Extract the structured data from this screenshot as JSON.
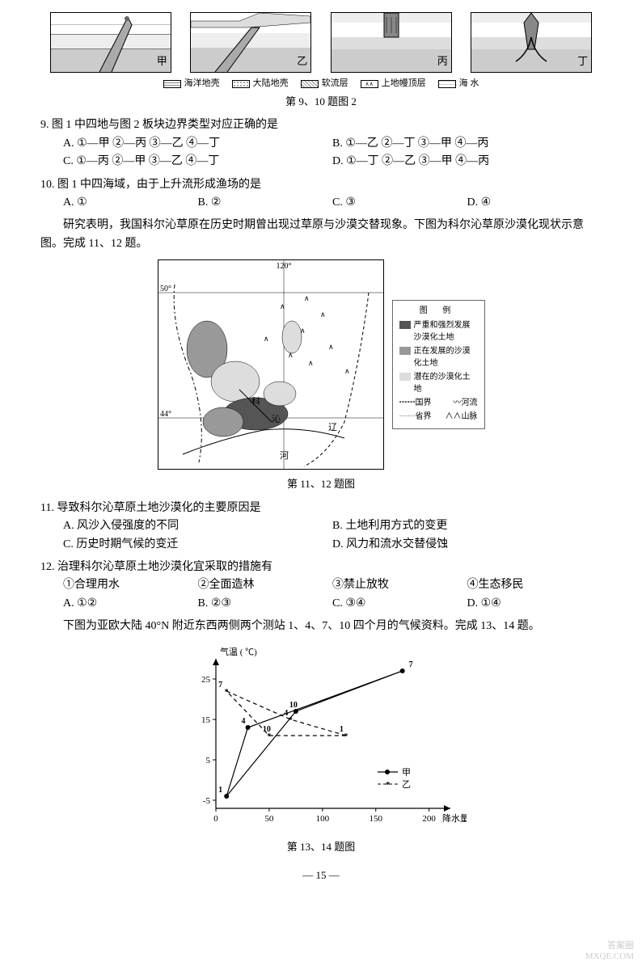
{
  "plate_diagrams": {
    "labels": [
      "甲",
      "乙",
      "丙",
      "丁"
    ],
    "legend": [
      {
        "label": "海洋地壳",
        "pattern": "horiz"
      },
      {
        "label": "大陆地壳",
        "pattern": "dots"
      },
      {
        "label": "软流层",
        "pattern": "grid"
      },
      {
        "label": "上地幔顶层",
        "pattern": "arrows"
      },
      {
        "label": "海 水",
        "pattern": "wave"
      }
    ],
    "caption": "第 9、10 题图 2"
  },
  "q9": {
    "stem": "9. 图 1 中四地与图 2 板块边界类型对应正确的是",
    "options": [
      "A. ①—甲 ②—丙 ③—乙 ④—丁",
      "B. ①—乙 ②—丁 ③—甲 ④—丙",
      "C. ①—丙 ②—甲 ③—乙 ④—丁",
      "D. ①—丁 ②—乙 ③—甲 ④—丙"
    ]
  },
  "q10": {
    "stem": "10. 图 1 中四海域，由于上升流形成渔场的是",
    "options": [
      "A. ①",
      "B. ②",
      "C. ③",
      "D. ④"
    ]
  },
  "intro_11_12": "研究表明，我国科尔沁草原在历史时期曾出现过草原与沙漠交替现象。下图为科尔沁草原沙漠化现状示意图。完成 11、12 题。",
  "map": {
    "lon_label": "120°",
    "lat_labels": [
      "50°",
      "44°"
    ],
    "river_labels": [
      "科",
      "沁",
      "辽",
      "河"
    ],
    "caption": "第 11、12 题图",
    "legend_title": "图 例",
    "legend_items": [
      {
        "label": "严重和强烈发展沙漠化土地",
        "fill": "#555"
      },
      {
        "label": "正在发展的沙漠化土地",
        "fill": "#999"
      },
      {
        "label": "潜在的沙漠化土地",
        "fill": "#ddd"
      },
      {
        "label": "国界",
        "symbol": "┅┅"
      },
      {
        "label": "河流",
        "symbol": "〰"
      },
      {
        "label": "省界",
        "symbol": "┄┄"
      },
      {
        "label": "山脉",
        "symbol": "∧∧"
      }
    ]
  },
  "q11": {
    "stem": "11. 导致科尔沁草原土地沙漠化的主要原因是",
    "options": [
      "A. 风沙入侵强度的不同",
      "B. 土地利用方式的变更",
      "C. 历史时期气候的变迁",
      "D. 风力和流水交替侵蚀"
    ]
  },
  "q12": {
    "stem": "12. 治理科尔沁草原土地沙漠化宜采取的措施有",
    "items": [
      "①合理用水",
      "②全面造林",
      "③禁止放牧",
      "④生态移民"
    ],
    "options": [
      "A. ①②",
      "B. ②③",
      "C. ③④",
      "D. ①④"
    ]
  },
  "intro_13_14": "下图为亚欧大陆 40°N 附近东西两侧两个测站 1、4、7、10 四个月的气候资料。完成 13、14 题。",
  "chart": {
    "type": "scatter-line",
    "y_label": "气温 ( ℃)",
    "x_label": "降水量 (mm)",
    "x_ticks": [
      0,
      50,
      100,
      150,
      200
    ],
    "y_ticks": [
      -5,
      5,
      15,
      25
    ],
    "x_range": [
      0,
      220
    ],
    "y_range": [
      -7,
      30
    ],
    "series": [
      {
        "name": "甲",
        "style": "solid",
        "marker": "dot",
        "points": [
          {
            "month": "1",
            "x": 10,
            "y": -4
          },
          {
            "month": "4",
            "x": 30,
            "y": 13
          },
          {
            "month": "7",
            "x": 175,
            "y": 27
          },
          {
            "month": "10",
            "x": 75,
            "y": 17
          }
        ]
      },
      {
        "name": "乙",
        "style": "dashed",
        "marker": "star",
        "points": [
          {
            "month": "1",
            "x": 122,
            "y": 11
          },
          {
            "month": "4",
            "x": 70,
            "y": 15
          },
          {
            "month": "7",
            "x": 10,
            "y": 22
          },
          {
            "month": "10",
            "x": 50,
            "y": 11
          }
        ]
      }
    ],
    "caption": "第 13、14 题图"
  },
  "page_number": "— 15 —",
  "watermark": {
    "l1": "答案圈",
    "l2": "MXQE.COM"
  }
}
